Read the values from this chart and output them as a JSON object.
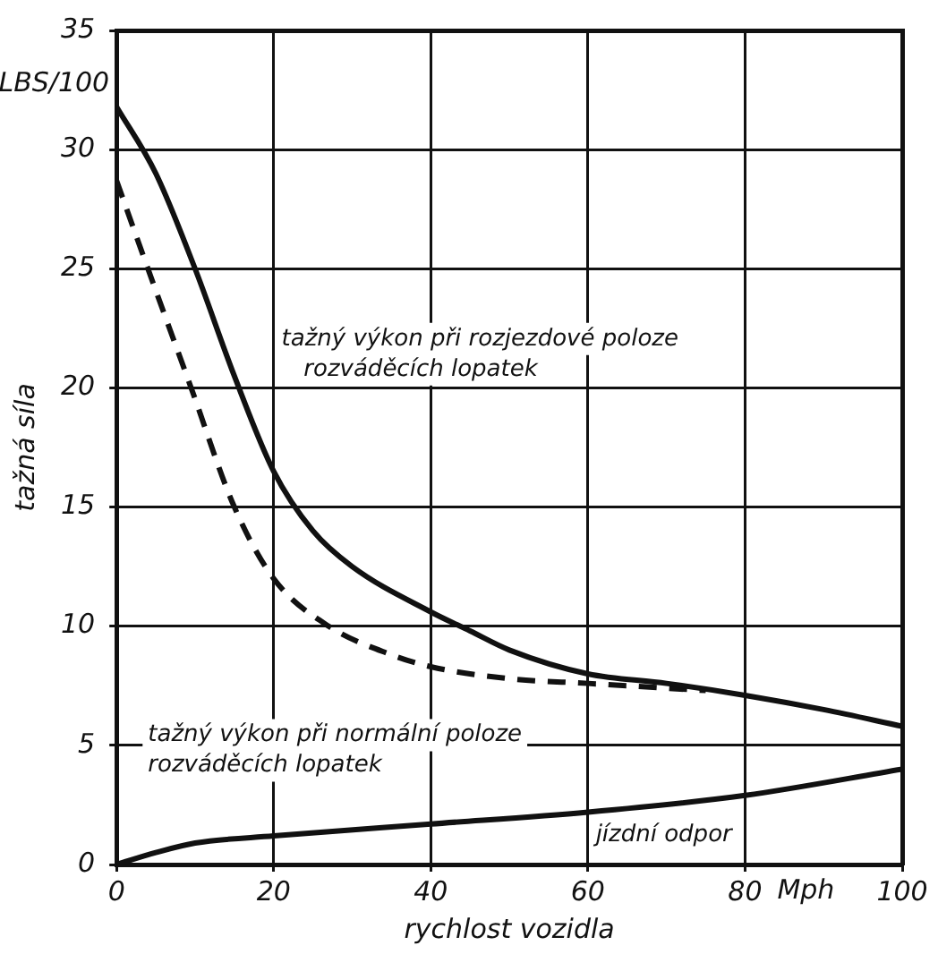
{
  "chart_data": {
    "type": "line",
    "xlabel": "rychlost vozidla",
    "ylabel": "tažná síla",
    "xlim": [
      0,
      100
    ],
    "ylim": [
      0,
      35
    ],
    "xticks": [
      0,
      20,
      40,
      60,
      80,
      100
    ],
    "yticks": [
      0,
      5,
      10,
      15,
      20,
      25,
      30,
      35
    ],
    "grid": true,
    "legend": false,
    "marker": "none",
    "series": [
      {
        "color": "#111111",
        "line_style": "solid",
        "x": [
          0,
          5,
          10,
          15,
          20,
          25,
          30,
          40,
          45,
          50,
          60,
          70,
          80,
          90,
          100
        ],
        "values": [
          31.8,
          29,
          25,
          20.5,
          16.5,
          14,
          12.5,
          10.6,
          9.8,
          9,
          8,
          7.6,
          7.1,
          6.5,
          5.8
        ]
      },
      {
        "color": "#111111",
        "line_style": "dashed",
        "x": [
          0,
          4,
          9.5,
          15,
          20,
          27,
          35,
          40,
          50,
          60,
          70,
          75
        ],
        "values": [
          28.7,
          25,
          20,
          15,
          12,
          10,
          8.8,
          8.3,
          7.8,
          7.6,
          7.4,
          7.3
        ]
      },
      {
        "color": "#111111",
        "line_style": "solid",
        "x": [
          0,
          5,
          10,
          20,
          40,
          60,
          80,
          100
        ],
        "values": [
          0,
          0.5,
          0.9,
          1.2,
          1.7,
          2.2,
          2.9,
          4
        ]
      }
    ],
    "annotations": [
      "tažný výkon při rozjezdové poloze\n   rozváděcích lopatek",
      "tažný výkon při normální poloze\nrozváděcích lopatek",
      "jízdní odpor",
      "LBS/100",
      "Mph"
    ]
  }
}
